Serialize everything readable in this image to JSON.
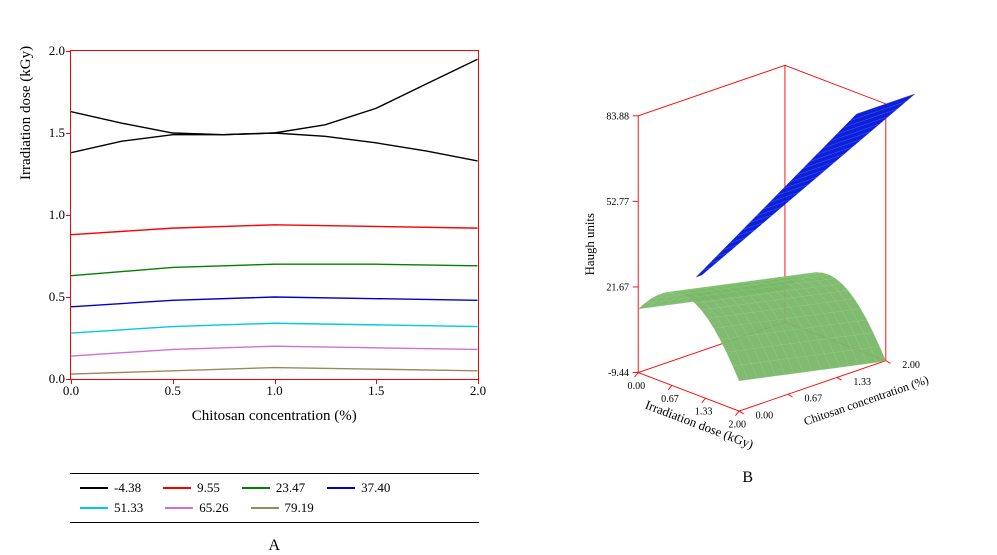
{
  "chart_a": {
    "type": "line-contour",
    "panel_label": "A",
    "x_label": "Chitosan concentration (%)",
    "y_label": "Irradiation dose (kGy)",
    "xlim": [
      0.0,
      2.0
    ],
    "ylim": [
      0.0,
      2.0
    ],
    "xticks": [
      0.0,
      0.5,
      1.0,
      1.5,
      2.0
    ],
    "yticks": [
      0.0,
      0.5,
      1.0,
      1.5,
      2.0
    ],
    "axis_color": "#ff0000",
    "background_color": "#ffffff",
    "tick_fontsize": 13,
    "label_fontsize": 15,
    "line_width": 1.4,
    "series": [
      {
        "label": "-4.38",
        "color": "#000000",
        "points": [
          [
            0.0,
            1.63
          ],
          [
            0.25,
            1.56
          ],
          [
            0.5,
            1.5
          ],
          [
            0.75,
            1.49
          ],
          [
            1.0,
            1.5
          ],
          [
            1.25,
            1.55
          ],
          [
            1.5,
            1.65
          ],
          [
            1.75,
            1.8
          ],
          [
            2.0,
            1.95
          ]
        ]
      },
      {
        "label": "-4.38b",
        "color": "#000000",
        "points": [
          [
            0.0,
            1.38
          ],
          [
            0.25,
            1.45
          ],
          [
            0.5,
            1.49
          ],
          [
            0.75,
            1.49
          ],
          [
            1.0,
            1.5
          ],
          [
            1.25,
            1.48
          ],
          [
            1.5,
            1.44
          ],
          [
            1.75,
            1.39
          ],
          [
            2.0,
            1.33
          ]
        ]
      },
      {
        "label": "9.55",
        "color": "#ff0000",
        "points": [
          [
            0.0,
            0.88
          ],
          [
            0.5,
            0.92
          ],
          [
            1.0,
            0.94
          ],
          [
            1.5,
            0.93
          ],
          [
            2.0,
            0.92
          ]
        ]
      },
      {
        "label": "23.47",
        "color": "#008000",
        "points": [
          [
            0.0,
            0.63
          ],
          [
            0.5,
            0.68
          ],
          [
            1.0,
            0.7
          ],
          [
            1.5,
            0.7
          ],
          [
            2.0,
            0.69
          ]
        ]
      },
      {
        "label": "37.40",
        "color": "#0000cc",
        "points": [
          [
            0.0,
            0.44
          ],
          [
            0.5,
            0.48
          ],
          [
            1.0,
            0.5
          ],
          [
            1.5,
            0.49
          ],
          [
            2.0,
            0.48
          ]
        ]
      },
      {
        "label": "51.33",
        "color": "#00c8e8",
        "points": [
          [
            0.0,
            0.28
          ],
          [
            0.5,
            0.32
          ],
          [
            1.0,
            0.34
          ],
          [
            1.5,
            0.33
          ],
          [
            2.0,
            0.32
          ]
        ]
      },
      {
        "label": "65.26",
        "color": "#d070d0",
        "points": [
          [
            0.0,
            0.14
          ],
          [
            0.5,
            0.18
          ],
          [
            1.0,
            0.2
          ],
          [
            1.5,
            0.19
          ],
          [
            2.0,
            0.18
          ]
        ]
      },
      {
        "label": "79.19",
        "color": "#9a8a5a",
        "points": [
          [
            0.0,
            0.03
          ],
          [
            0.5,
            0.05
          ],
          [
            1.0,
            0.07
          ],
          [
            1.5,
            0.06
          ],
          [
            2.0,
            0.05
          ]
        ]
      }
    ],
    "legend": [
      {
        "label": "-4.38",
        "color": "#000000"
      },
      {
        "label": "9.55",
        "color": "#ff0000"
      },
      {
        "label": "23.47",
        "color": "#008000"
      },
      {
        "label": "37.40",
        "color": "#0000cc"
      },
      {
        "label": "51.33",
        "color": "#00c8e8"
      },
      {
        "label": "65.26",
        "color": "#d070d0"
      },
      {
        "label": "79.19",
        "color": "#9a8a5a"
      }
    ]
  },
  "chart_b": {
    "type": "3d-surface",
    "panel_label": "B",
    "x_label": "Irradiation dose (kGy)",
    "y_label": "Chitosan concentration (%)",
    "z_label": "Haugh units",
    "xticks": [
      "0.00",
      "0.67",
      "1.33",
      "2.00"
    ],
    "yticks": [
      "0.00",
      "0.67",
      "1.33",
      "2.00"
    ],
    "zticks": [
      "-9.44",
      "21.67",
      "52.77",
      "83.88"
    ],
    "axis_color": "#ff0000",
    "tick_fontsize": 11,
    "label_fontsize": 14,
    "surfaces": [
      {
        "color_fill": "#7ab769",
        "color_mesh": "#8fcf7d",
        "opacity": 0.95,
        "shape": "saddle-low"
      },
      {
        "color_fill": "#0015d8",
        "color_mesh": "#4e5ff0",
        "opacity": 0.95,
        "shape": "ridge-high"
      }
    ],
    "background_color": "#ffffff"
  }
}
